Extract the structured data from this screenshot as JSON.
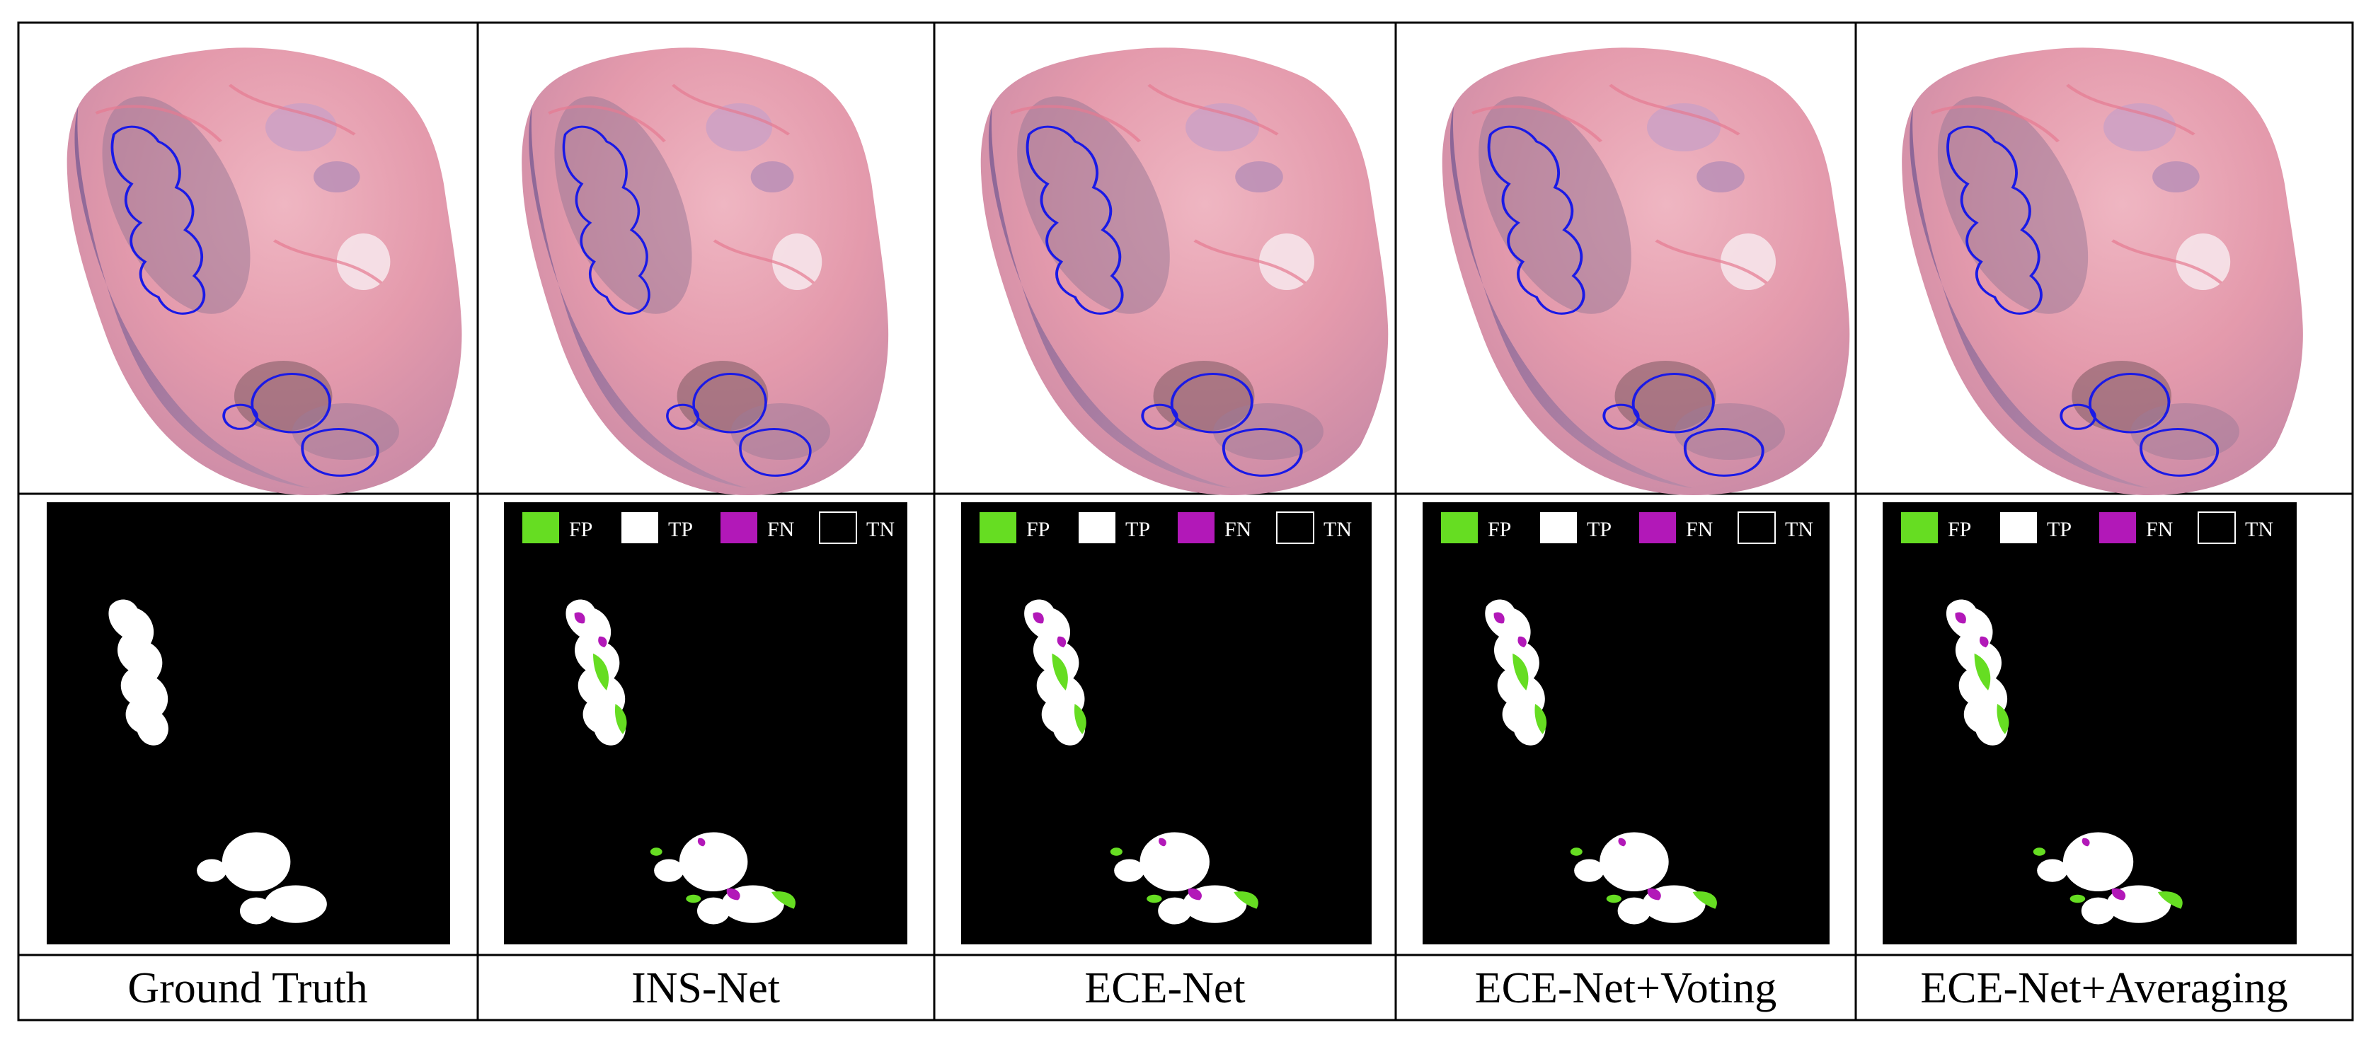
{
  "figure": {
    "columns": [
      {
        "caption": "Ground Truth",
        "has_legend": false
      },
      {
        "caption": "INS-Net",
        "has_legend": true
      },
      {
        "caption": "ECE-Net",
        "has_legend": true
      },
      {
        "caption": "ECE-Net+Voting",
        "has_legend": true
      },
      {
        "caption": "ECE-Net+Averaging",
        "has_legend": true
      }
    ],
    "legend": [
      {
        "label": "FP",
        "color": "#66dd22"
      },
      {
        "label": "TP",
        "color": "#ffffff"
      },
      {
        "label": "FN",
        "color": "#b218b8"
      },
      {
        "label": "TN",
        "color": "#000000"
      }
    ],
    "colors": {
      "tissue_pink": "#e9a2b2",
      "tissue_purple": "#8f6e9a",
      "contour_blue": "#1a1ae6",
      "fp_green": "#66dd22",
      "fn_magenta": "#b218b8",
      "tp_white": "#ffffff",
      "background_black": "#000000"
    }
  }
}
